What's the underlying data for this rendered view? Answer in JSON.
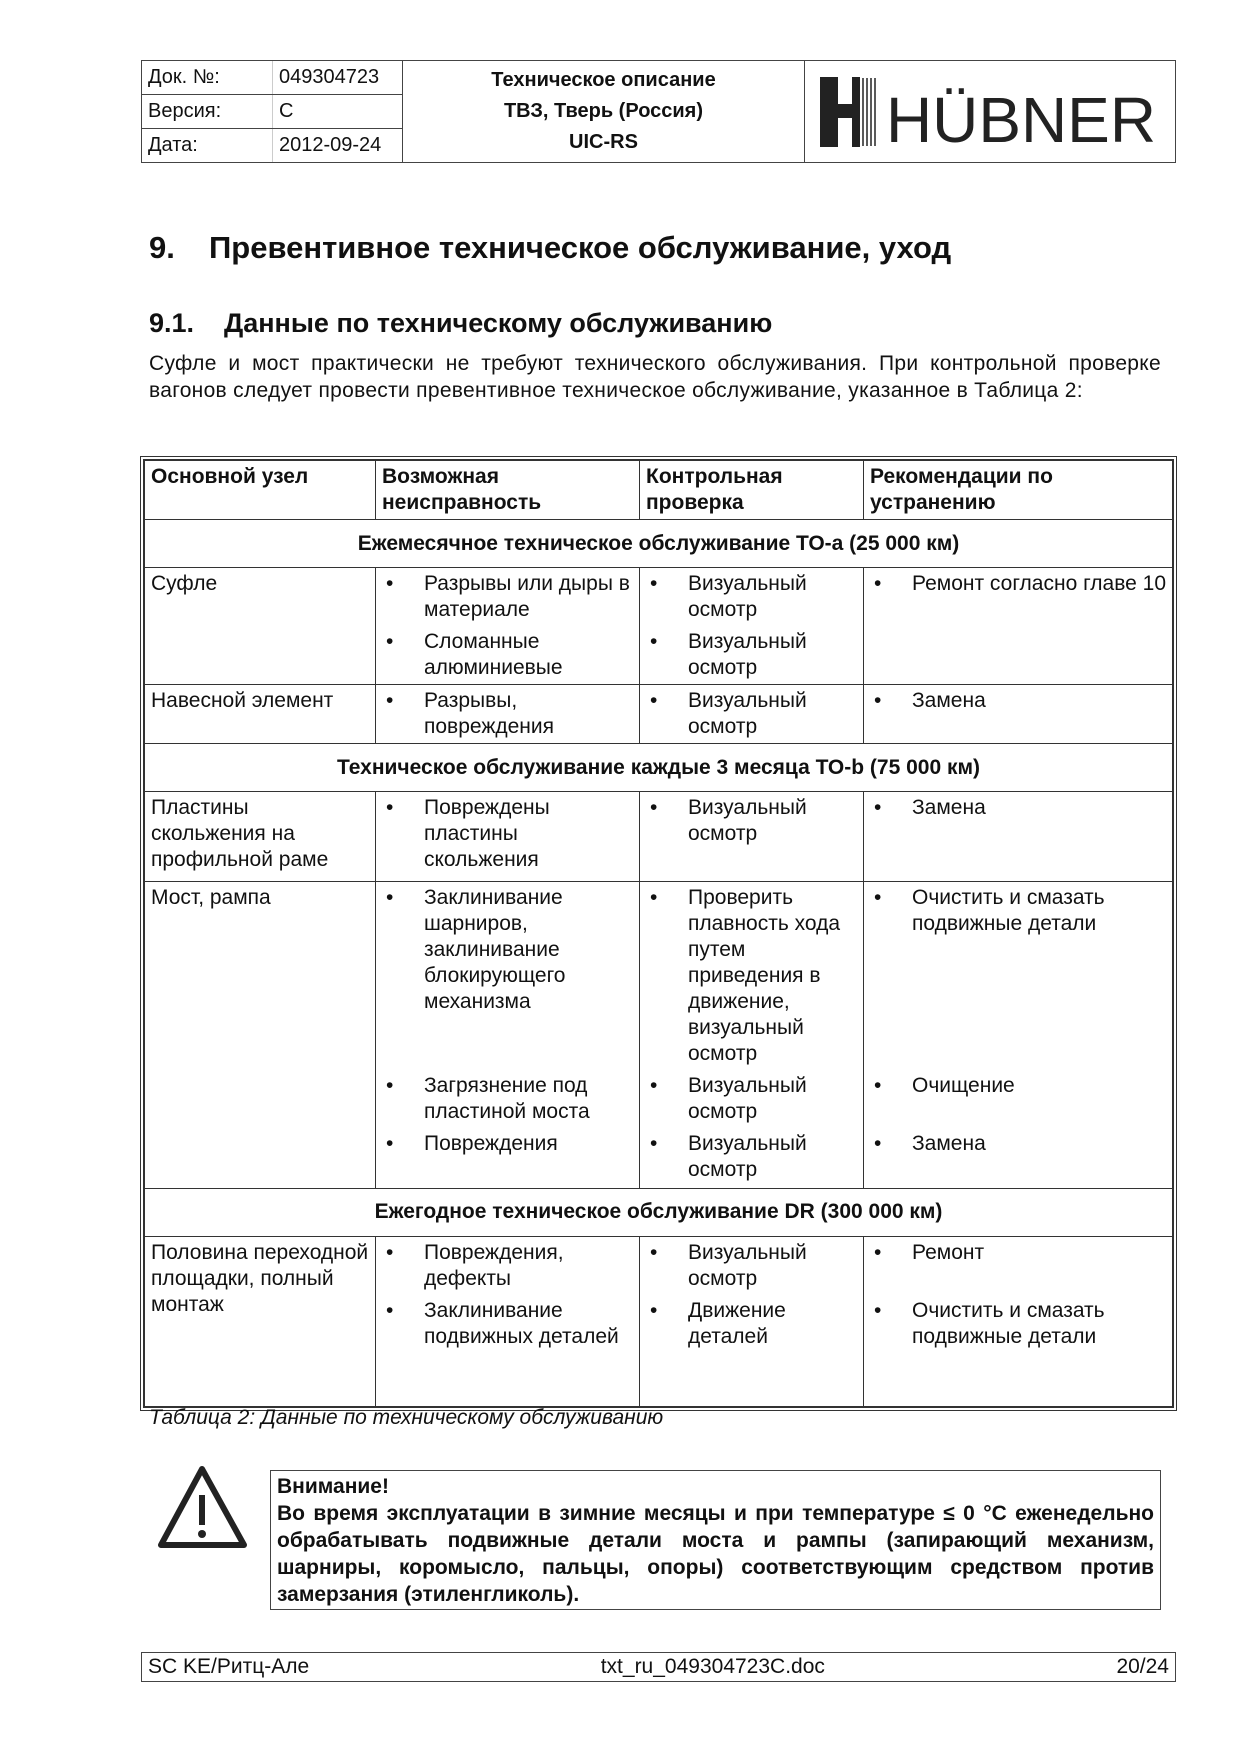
{
  "header": {
    "doc_label": "Док. №:",
    "doc_value": "049304723",
    "version_label": "Версия:",
    "version_value": "C",
    "date_label": "Дата:",
    "date_value": "2012-09-24",
    "title1": "Техническое описание",
    "title2": "ТВЗ, Тверь (Россия)",
    "title3": "UIC-RS",
    "logo": "HÜBNER"
  },
  "section": {
    "number": "9.",
    "title": "Превентивное техническое обслуживание, уход"
  },
  "subsection": {
    "number": "9.1.",
    "title": "Данные по техническому обслуживанию"
  },
  "paragraph": "Суфле и мост практически не требуют технического обслуживания. При контрольной проверке вагонов следует провести превентивное техническое обслуживание, указанное в Таблица 2:",
  "table": {
    "headers": [
      "Основной узел",
      "Возможная неисправность",
      "Контрольная проверка",
      "Рекомендации по устранению"
    ],
    "bullet": "•",
    "groups": [
      {
        "title": "Ежемесячное техническое обслуживание ТО-a (25 000 км)",
        "rows": [
          {
            "node": "Суфле",
            "items": [
              {
                "fault": "Разрывы или дыры в материале",
                "check": "Визуальный осмотр",
                "fix": "Ремонт согласно главе 10"
              },
              {
                "fault": "Сломанные алюминиевые",
                "check": "Визуальный осмотр",
                "fix": ""
              }
            ]
          },
          {
            "node": "Навесной элемент",
            "items": [
              {
                "fault": "Разрывы, повреждения",
                "check": "Визуальный осмотр",
                "fix": "Замена"
              }
            ]
          }
        ]
      },
      {
        "title": "Техническое обслуживание каждые 3 месяца ТО-b (75 000 км)",
        "rows": [
          {
            "node": "Пластины скольжения на профильной раме",
            "items": [
              {
                "fault": "Повреждены пластины скольжения",
                "check": "Визуальный осмотр",
                "fix": "Замена"
              }
            ]
          },
          {
            "node": "Мост, рампа",
            "items": [
              {
                "fault": "Заклинивание шарниров, заклинивание блокирующего механизма",
                "check": "Проверить плавность хода путем приведения в движение, визуальный осмотр",
                "fix": "Очистить и смазать подвижные детали"
              },
              {
                "fault": "Загрязнение под пластиной моста",
                "check": "Визуальный осмотр",
                "fix": "Очищение"
              },
              {
                "fault": "Повреждения",
                "check": "Визуальный осмотр",
                "fix": "Замена"
              }
            ]
          }
        ]
      },
      {
        "title": "Ежегодное техническое обслуживание DR (300 000 км)",
        "rows": [
          {
            "node": "Половина переходной площадки, полный монтаж",
            "items": [
              {
                "fault": "Повреждения, дефекты",
                "check": "Визуальный осмотр",
                "fix": "Ремонт"
              },
              {
                "fault": "Заклинивание подвижных деталей",
                "check": "Движение деталей",
                "fix": "Очистить и смазать подвижные детали"
              }
            ]
          }
        ]
      }
    ]
  },
  "caption": "Таблица 2: Данные по техническому обслуживанию",
  "warning": {
    "icon": "warning-triangle-icon",
    "title": "Внимание!",
    "text": "Во время эксплуатации в зимние месяцы и при температуре ≤ 0 °C еженедельно обрабатывать подвижные детали моста и рампы (запирающий механизм, шарниры, коромысло, пальцы, опоры) соответствующим средством против замерзания (этиленгликоль)."
  },
  "footer": {
    "left": "SC KE/Ритц-Але",
    "center": "txt_ru_049304723C.doc",
    "right": "20/24"
  }
}
